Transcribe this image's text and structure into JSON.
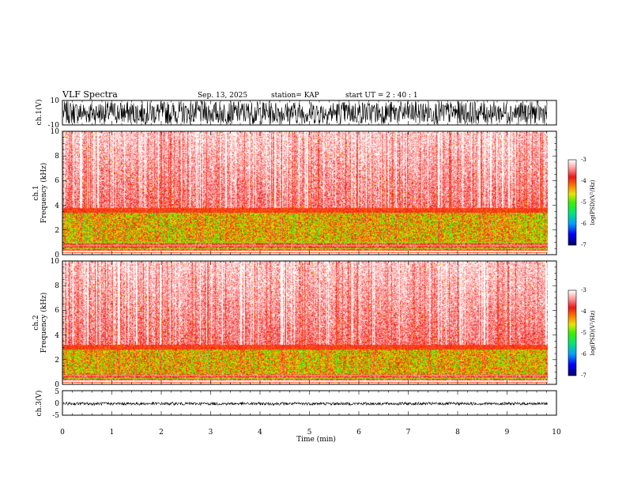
{
  "chart_data": {
    "type": "heatmap",
    "title": "VLF Spectra",
    "date": "Sep. 13, 2025",
    "station": "station= KAP",
    "start_ut": "start  UT =   2 : 40 : 1",
    "xlabel": "Time  (min)",
    "xlim": [
      0,
      10
    ],
    "x_ticks": [
      "0",
      "1",
      "2",
      "3",
      "4",
      "5",
      "6",
      "7",
      "8",
      "9",
      "10"
    ],
    "data_end_min": 9.82,
    "panels": [
      {
        "id": "ch1-waveform",
        "type": "line",
        "ylabel": "ch.1(V)",
        "ylim": [
          -10,
          10
        ],
        "y_ticks": [
          "10",
          "-10"
        ],
        "amplitude_v": 10
      },
      {
        "id": "ch1-spectrogram",
        "type": "heatmap",
        "ylabel": "Frequency  (kHz)",
        "channel_label": "ch.1",
        "ylim": [
          0,
          10
        ],
        "y_ticks": [
          "10",
          "8",
          "6",
          "4",
          "2",
          "0"
        ],
        "colorbar_label": "log(PSD)(V²/Hz)",
        "colorbar_ticks": [
          "-3",
          "-4",
          "-5",
          "-6",
          "-7"
        ],
        "crange": [
          -7,
          -3
        ],
        "bands_khz": {
          "noise_floor_top": 1.0,
          "green_low": 1.0,
          "green_high": 3.4,
          "red_top": 10
        }
      },
      {
        "id": "ch2-spectrogram",
        "type": "heatmap",
        "ylabel": "Frequency  (kHz)",
        "channel_label": "ch.2",
        "ylim": [
          0,
          10
        ],
        "y_ticks": [
          "10",
          "8",
          "6",
          "4",
          "2",
          "0"
        ],
        "colorbar_label": "log(PSD)(V²/Hz)",
        "colorbar_ticks": [
          "-3",
          "-4",
          "-5",
          "-6",
          "-7"
        ],
        "crange": [
          -7,
          -3
        ],
        "bands_khz": {
          "noise_floor_top": 0.8,
          "green_low": 0.8,
          "green_high": 2.8,
          "red_top": 10
        }
      },
      {
        "id": "ch3-waveform",
        "type": "line",
        "ylabel": "ch.3(V)",
        "ylim": [
          -5,
          5
        ],
        "y_ticks": [
          "5",
          "0",
          "-5"
        ],
        "level_v": -0.3,
        "amplitude_v": 0.6
      }
    ]
  }
}
